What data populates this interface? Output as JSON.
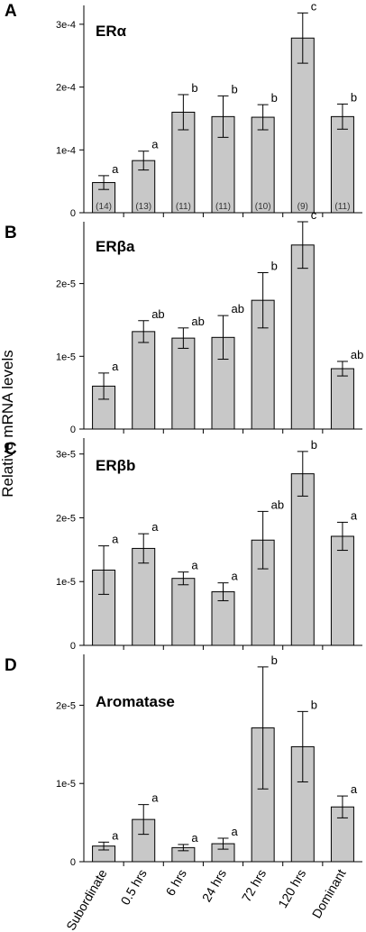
{
  "figure": {
    "ylabel": "Relative mRNA levels",
    "categories": [
      "Subordinate",
      "0.5 hrs",
      "6 hrs",
      "24 hrs",
      "72 hrs",
      "120 hrs",
      "Dominant"
    ]
  },
  "chart_data": [
    {
      "type": "bar",
      "panel": "A",
      "title": "ERα",
      "categories": [
        "Subordinate",
        "0.5 hrs",
        "6 hrs",
        "24 hrs",
        "72 hrs",
        "120 hrs",
        "Dominant"
      ],
      "values": [
        4.8e-05,
        8.3e-05,
        0.00016,
        0.000153,
        0.000152,
        0.000278,
        0.000153
      ],
      "errors": [
        1.1e-05,
        1.5e-05,
        2.8e-05,
        3.3e-05,
        2e-05,
        4e-05,
        2e-05
      ],
      "letters": [
        "a",
        "a",
        "b",
        "b",
        "b",
        "c",
        "b"
      ],
      "n_labels": [
        "(14)",
        "(13)",
        "(11)",
        "(11)",
        "(10)",
        "(9)",
        "(11)"
      ],
      "ylim": [
        0,
        0.00033
      ],
      "ticks": [
        0,
        0.0001,
        0.0002,
        0.0003
      ],
      "tick_labels": [
        "0",
        "1e-4",
        "2e-4",
        "3e-4"
      ]
    },
    {
      "type": "bar",
      "panel": "B",
      "title": "ERβa",
      "categories": [
        "Subordinate",
        "0.5 hrs",
        "6 hrs",
        "24 hrs",
        "72 hrs",
        "120 hrs",
        "Dominant"
      ],
      "values": [
        5.9e-06,
        1.34e-05,
        1.25e-05,
        1.26e-05,
        1.77e-05,
        2.53e-05,
        8.3e-06
      ],
      "errors": [
        1.8e-06,
        1.5e-06,
        1.4e-06,
        3e-06,
        3.8e-06,
        3.2e-06,
        1e-06
      ],
      "letters": [
        "a",
        "ab",
        "ab",
        "ab",
        "b",
        "c",
        "ab"
      ],
      "ylim": [
        0,
        2.85e-05
      ],
      "ticks": [
        0,
        1e-05,
        2e-05
      ],
      "tick_labels": [
        "0",
        "1e-5",
        "2e-5"
      ]
    },
    {
      "type": "bar",
      "panel": "C",
      "title": "ERβb",
      "categories": [
        "Subordinate",
        "0.5 hrs",
        "6 hrs",
        "24 hrs",
        "72 hrs",
        "120 hrs",
        "Dominant"
      ],
      "values": [
        1.18e-05,
        1.52e-05,
        1.05e-05,
        8.4e-06,
        1.65e-05,
        2.69e-05,
        1.71e-05
      ],
      "errors": [
        3.8e-06,
        2.3e-06,
        1e-06,
        1.4e-06,
        4.5e-06,
        3.5e-06,
        2.2e-06
      ],
      "letters": [
        "a",
        "a",
        "a",
        "a",
        "ab",
        "b",
        "a"
      ],
      "ylim": [
        0,
        3.25e-05
      ],
      "ticks": [
        0,
        1e-05,
        2e-05,
        3e-05
      ],
      "tick_labels": [
        "0",
        "1e-5",
        "2e-5",
        "3e-5"
      ]
    },
    {
      "type": "bar",
      "panel": "D",
      "title": "Aromatase",
      "categories": [
        "Subordinate",
        "0.5 hrs",
        "6 hrs",
        "24 hrs",
        "72 hrs",
        "120 hrs",
        "Dominant"
      ],
      "values": [
        2e-06,
        5.4e-06,
        1.8e-06,
        2.3e-06,
        1.71e-05,
        1.47e-05,
        7e-06
      ],
      "errors": [
        5e-07,
        1.9e-06,
        4e-07,
        7e-07,
        7.8e-06,
        4.5e-06,
        1.4e-06
      ],
      "letters": [
        "a",
        "a",
        "a",
        "a",
        "b",
        "b",
        "a"
      ],
      "ylim": [
        0,
        2.65e-05
      ],
      "ticks": [
        0,
        1e-05,
        2e-05
      ],
      "tick_labels": [
        "0",
        "1e-5",
        "2e-5"
      ]
    }
  ]
}
